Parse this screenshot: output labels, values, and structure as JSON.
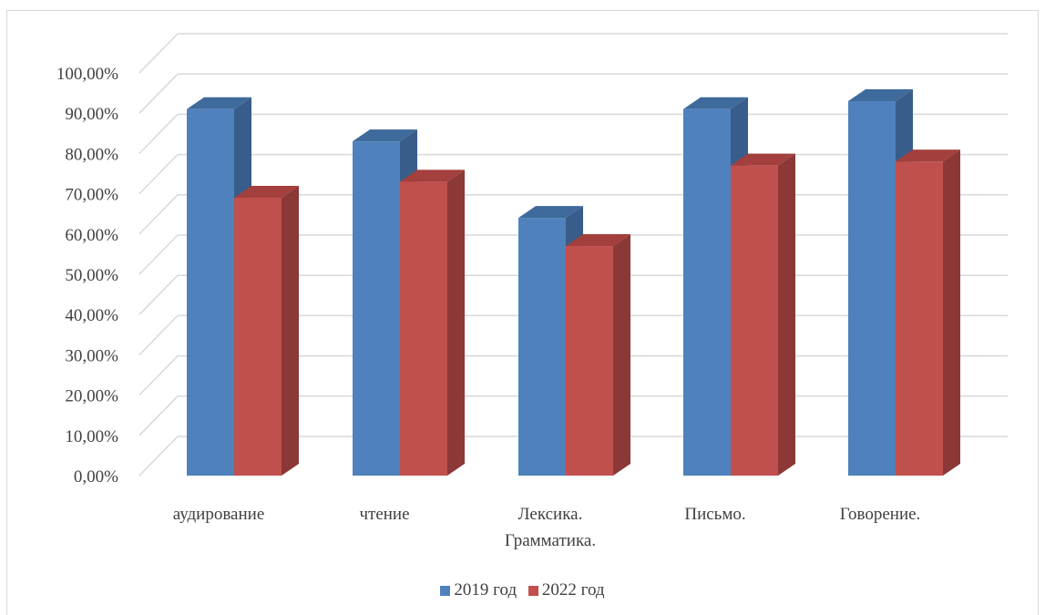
{
  "chart_data": {
    "type": "bar",
    "style": "3d-clustered-column",
    "categories": [
      "аудирование",
      "чтение",
      "Лексика. Грамматика.",
      "Письмо.",
      "Говорение."
    ],
    "category_lines": [
      [
        "аудирование"
      ],
      [
        "чтение"
      ],
      [
        "Лексика.",
        "Грамматика."
      ],
      [
        "Письмо."
      ],
      [
        "Говорение."
      ]
    ],
    "series": [
      {
        "name": "2019 год",
        "values": [
          91,
          83,
          64,
          91,
          93
        ],
        "color": "#4f81bd",
        "top_color": "#3e6a9c",
        "side_color": "#385d8a"
      },
      {
        "name": "2022 год",
        "values": [
          69,
          73,
          57,
          77,
          78
        ],
        "color": "#c0504d",
        "top_color": "#a33f3c",
        "side_color": "#8c3836"
      }
    ],
    "y_ticks": [
      "0,00%",
      "10,00%",
      "20,00%",
      "30,00%",
      "40,00%",
      "50,00%",
      "60,00%",
      "70,00%",
      "80,00%",
      "90,00%",
      "100,00%"
    ],
    "ylim": [
      0,
      100
    ],
    "grid": true,
    "legend_position": "bottom",
    "title": "",
    "xlabel": "",
    "ylabel": ""
  }
}
